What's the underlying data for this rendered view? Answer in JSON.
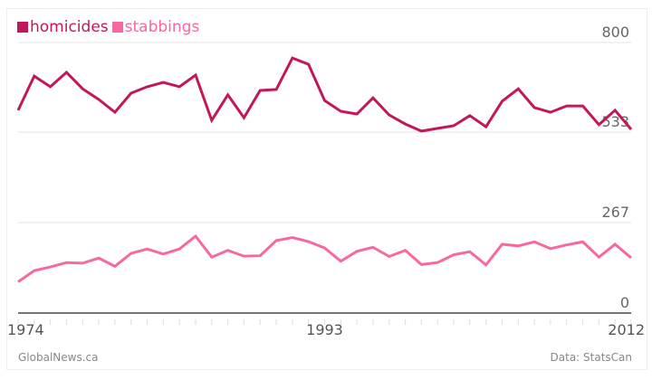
{
  "chart_data": {
    "type": "line",
    "layout": "two stacked panels, shared x axis",
    "x": [
      1974,
      1975,
      1976,
      1977,
      1978,
      1979,
      1980,
      1981,
      1982,
      1983,
      1984,
      1985,
      1986,
      1987,
      1988,
      1989,
      1990,
      1991,
      1992,
      1993,
      1994,
      1995,
      1996,
      1997,
      1998,
      1999,
      2000,
      2001,
      2002,
      2003,
      2004,
      2005,
      2006,
      2007,
      2008,
      2009,
      2010,
      2011,
      2012
    ],
    "x_tick_labels": [
      "1974",
      "1993",
      "2012"
    ],
    "series": [
      {
        "name": "homicides",
        "color": "#c2185b",
        "ylim": [
          533,
          800
        ],
        "y_tick_labels": [
          "800",
          "533"
        ],
        "values": [
          598,
          700,
          668,
          711,
          662,
          630,
          592,
          649,
          668,
          681,
          668,
          703,
          568,
          644,
          576,
          657,
          660,
          754,
          735,
          627,
          595,
          587,
          635,
          584,
          557,
          536,
          544,
          552,
          582,
          549,
          625,
          662,
          606,
          592,
          611,
          611,
          555,
          598,
          541
        ]
      },
      {
        "name": "stabbings",
        "color": "#f768a1",
        "ylim": [
          0,
          267
        ],
        "y_tick_labels": [
          "267",
          "0"
        ],
        "values": [
          92,
          125,
          136,
          149,
          147,
          162,
          138,
          176,
          189,
          174,
          189,
          227,
          165,
          185,
          168,
          169,
          214,
          223,
          211,
          192,
          153,
          182,
          194,
          167,
          185,
          143,
          149,
          172,
          181,
          142,
          203,
          198,
          210,
          190,
          201,
          210,
          165,
          203,
          163
        ]
      }
    ],
    "legend": "top-left",
    "grid": true
  },
  "footer": {
    "source_left": "GlobalNews.ca",
    "source_right": "Data: StatsCan"
  }
}
